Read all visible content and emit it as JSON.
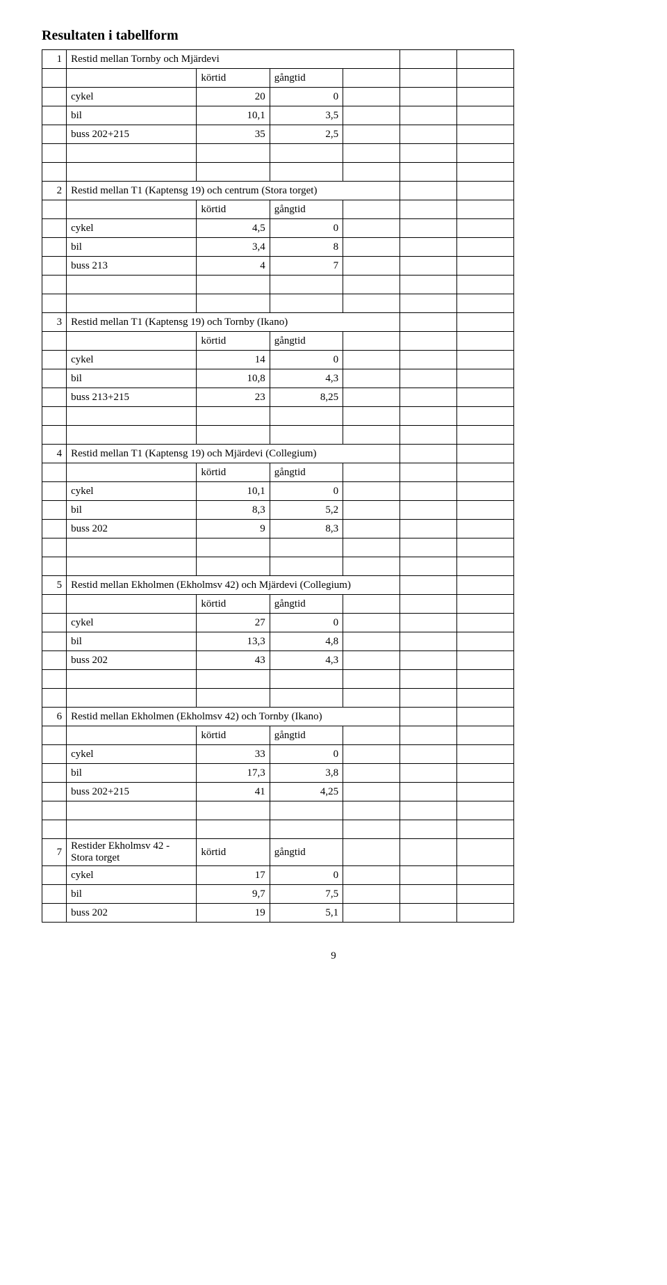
{
  "title": "Resultaten i tabellform",
  "page_number": "9",
  "colors": {
    "border": "#000000",
    "text": "#000000",
    "background": "#ffffff"
  },
  "blocks": [
    {
      "idx": "1",
      "header": "Restid mellan Tornby och Mjärdevi",
      "col1_label": "körtid",
      "col2_label": "gångtid",
      "rows": [
        {
          "label": "cykel",
          "v1": "20",
          "v2": "0"
        },
        {
          "label": "bil",
          "v1": "10,1",
          "v2": "3,5"
        },
        {
          "label": "buss 202+215",
          "v1": "35",
          "v2": "2,5"
        }
      ]
    },
    {
      "idx": "2",
      "header": "Restid mellan T1 (Kaptensg 19) och centrum (Stora torget)",
      "col1_label": "körtid",
      "col2_label": "gångtid",
      "rows": [
        {
          "label": "cykel",
          "v1": "4,5",
          "v2": "0"
        },
        {
          "label": "bil",
          "v1": "3,4",
          "v2": "8"
        },
        {
          "label": "buss 213",
          "v1": "4",
          "v2": "7"
        }
      ]
    },
    {
      "idx": "3",
      "header": "Restid mellan T1 (Kaptensg 19) och Tornby (Ikano)",
      "col1_label": "körtid",
      "col2_label": "gångtid",
      "rows": [
        {
          "label": "cykel",
          "v1": "14",
          "v2": "0"
        },
        {
          "label": "bil",
          "v1": "10,8",
          "v2": "4,3"
        },
        {
          "label": "buss 213+215",
          "v1": "23",
          "v2": "8,25"
        }
      ]
    },
    {
      "idx": "4",
      "header": "Restid mellan T1 (Kaptensg 19) och Mjärdevi (Collegium)",
      "col1_label": "körtid",
      "col2_label": "gångtid",
      "rows": [
        {
          "label": "cykel",
          "v1": "10,1",
          "v2": "0"
        },
        {
          "label": "bil",
          "v1": "8,3",
          "v2": "5,2"
        },
        {
          "label": "buss 202",
          "v1": "9",
          "v2": "8,3"
        }
      ]
    },
    {
      "idx": "5",
      "header": "Restid mellan Ekholmen (Ekholmsv 42) och Mjärdevi (Collegium)",
      "col1_label": "körtid",
      "col2_label": "gångtid",
      "rows": [
        {
          "label": "cykel",
          "v1": "27",
          "v2": "0"
        },
        {
          "label": "bil",
          "v1": "13,3",
          "v2": "4,8"
        },
        {
          "label": "buss 202",
          "v1": "43",
          "v2": "4,3"
        }
      ]
    },
    {
      "idx": "6",
      "header": "Restid mellan Ekholmen (Ekholmsv 42) och Tornby (Ikano)",
      "col1_label": "körtid",
      "col2_label": "gångtid",
      "rows": [
        {
          "label": "cykel",
          "v1": "33",
          "v2": "0"
        },
        {
          "label": "bil",
          "v1": "17,3",
          "v2": "3,8"
        },
        {
          "label": "buss 202+215",
          "v1": "41",
          "v2": "4,25"
        }
      ]
    },
    {
      "idx": "7",
      "header": "Restider Ekholmsv 42 - Stora torget",
      "col1_label": "körtid",
      "col2_label": "gångtid",
      "inline_header": true,
      "rows": [
        {
          "label": "cykel",
          "v1": "17",
          "v2": "0"
        },
        {
          "label": "bil",
          "v1": "9,7",
          "v2": "7,5"
        },
        {
          "label": "buss 202",
          "v1": "19",
          "v2": "5,1"
        }
      ]
    }
  ]
}
